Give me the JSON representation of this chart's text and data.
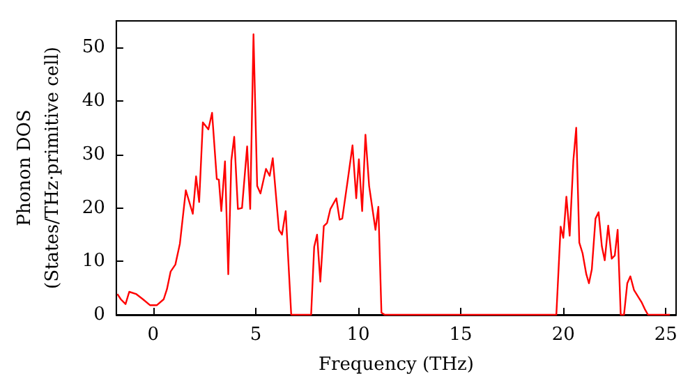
{
  "chart_data": {
    "type": "line",
    "xlabel": "Frequency (THz)",
    "ylabel": "Phonon DOS\n(States/THz·primitive cell)",
    "xlim": [
      -1.8,
      25.5
    ],
    "ylim": [
      0,
      55
    ],
    "xticks": [
      0,
      5,
      10,
      15,
      20,
      25
    ],
    "yticks": [
      0,
      10,
      20,
      30,
      40,
      50
    ],
    "grid": false,
    "marker": "none",
    "line_style": "solid",
    "series": [
      {
        "color": "#ff0000",
        "x": [
          -1.75,
          -1.58,
          -1.35,
          -1.17,
          -0.84,
          -0.5,
          -0.16,
          0.18,
          0.51,
          0.67,
          0.85,
          1.08,
          1.3,
          1.59,
          1.93,
          2.09,
          2.24,
          2.42,
          2.69,
          2.87,
          3.1,
          3.2,
          3.32,
          3.5,
          3.66,
          3.81,
          3.95,
          4.13,
          4.33,
          4.58,
          4.73,
          4.89,
          5.07,
          5.23,
          5.5,
          5.68,
          5.83,
          6.13,
          6.28,
          6.46,
          6.73,
          7.7,
          7.85,
          7.99,
          8.15,
          8.32,
          8.48,
          8.64,
          8.93,
          9.09,
          9.22,
          9.49,
          9.72,
          9.9,
          10.03,
          10.19,
          10.35,
          10.53,
          10.84,
          10.98,
          11.13,
          11.29,
          19.66,
          19.87,
          20.0,
          20.15,
          20.31,
          20.49,
          20.63,
          20.78,
          20.94,
          21.12,
          21.25,
          21.39,
          21.57,
          21.72,
          21.88,
          22.02,
          22.19,
          22.36,
          22.51,
          22.65,
          22.8,
          22.96,
          23.12,
          23.27,
          23.45,
          23.81,
          23.97,
          24.13,
          25.2
        ],
        "values": [
          3.9,
          2.9,
          2.0,
          4.3,
          3.9,
          2.9,
          1.8,
          1.8,
          2.9,
          4.8,
          8.1,
          9.4,
          13.3,
          23.3,
          18.9,
          25.9,
          21.1,
          36.0,
          34.7,
          37.8,
          25.4,
          25.3,
          19.4,
          28.7,
          7.6,
          28.9,
          33.3,
          19.8,
          20.0,
          31.5,
          19.8,
          52.5,
          24.1,
          22.7,
          27.3,
          26.0,
          29.3,
          15.9,
          15.0,
          19.4,
          0,
          0,
          12.7,
          15.0,
          6.2,
          16.6,
          17.2,
          19.8,
          21.8,
          17.8,
          18.0,
          25.3,
          31.7,
          21.8,
          29.1,
          19.4,
          33.7,
          24.1,
          15.9,
          20.2,
          0.4,
          0,
          0,
          16.5,
          14.4,
          22.1,
          14.8,
          28.9,
          35.0,
          13.5,
          11.5,
          7.6,
          5.9,
          8.5,
          18.0,
          19.2,
          12.8,
          10.2,
          16.7,
          10.5,
          11.1,
          15.9,
          0,
          0,
          5.9,
          7.2,
          4.6,
          2.4,
          1.1,
          0,
          0
        ]
      }
    ]
  }
}
